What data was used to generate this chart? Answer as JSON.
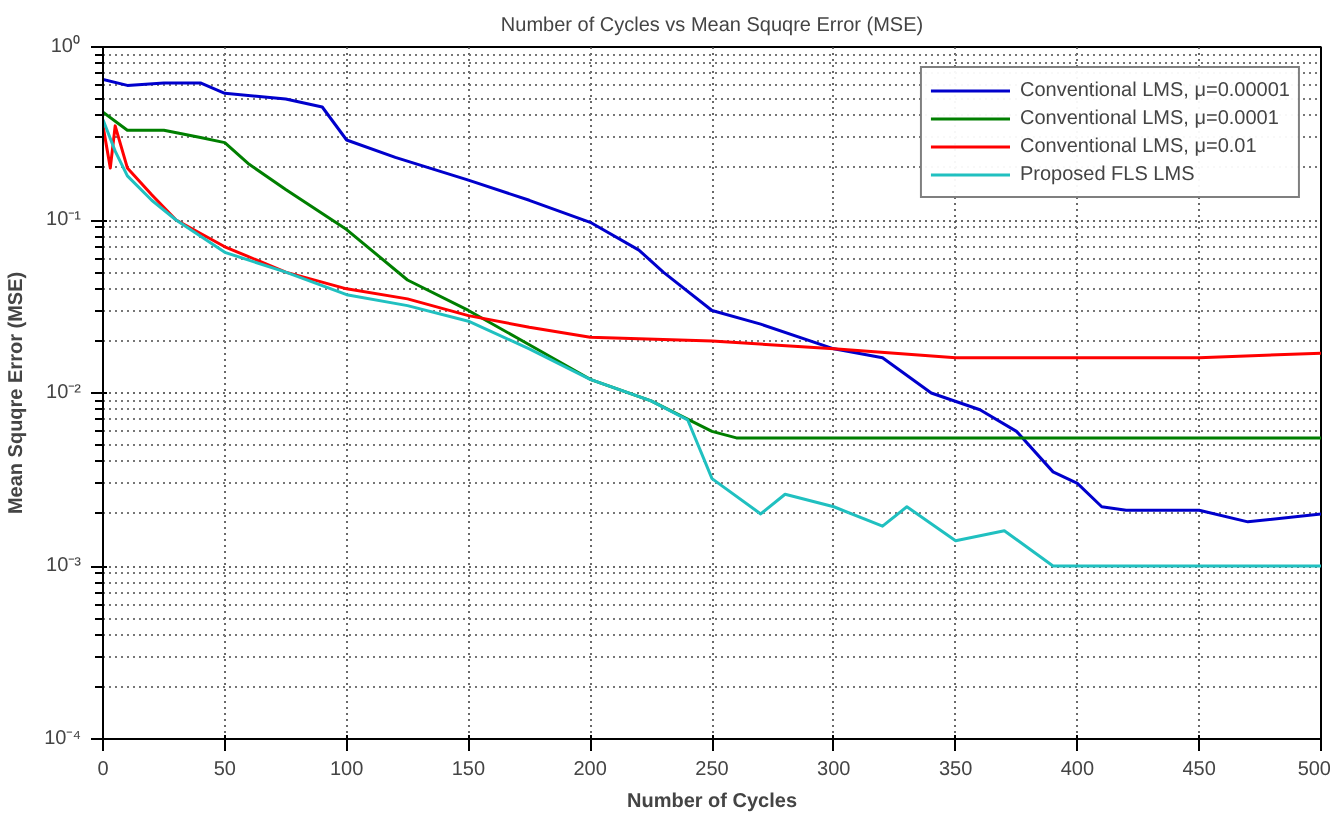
{
  "chart_data": {
    "type": "line",
    "title": "Number of Cycles vs Mean Squqre Error (MSE)",
    "xlabel": "Number of Cycles",
    "ylabel": "Mean Squqre Error (MSE)",
    "log": "y",
    "grid": true,
    "legend": "top right",
    "line_style": "solid",
    "xlim": [
      0,
      500
    ],
    "xticks": [
      0,
      50,
      100,
      150,
      200,
      250,
      300,
      350,
      400,
      450,
      500
    ],
    "ylim": [
      0.0001,
      1
    ],
    "yticks": [
      {
        "value": 0.0001,
        "label": "10⁻⁴"
      },
      {
        "value": 0.001,
        "label": "10⁻³"
      },
      {
        "value": 0.01,
        "label": "10⁻²"
      },
      {
        "value": 0.1,
        "label": "10⁻¹"
      },
      {
        "value": 1,
        "label": "10⁰"
      }
    ],
    "series": [
      {
        "name": "Conventional LMS, μ=0.00001",
        "color": "#0000cc",
        "x": [
          0,
          10,
          25,
          40,
          50,
          75,
          90,
          100,
          120,
          150,
          175,
          200,
          220,
          230,
          250,
          270,
          300,
          320,
          340,
          360,
          375,
          390,
          400,
          410,
          420,
          450,
          470,
          500
        ],
        "values": [
          0.65,
          0.6,
          0.62,
          0.62,
          0.54,
          0.5,
          0.45,
          0.29,
          0.23,
          0.17,
          0.13,
          0.097,
          0.067,
          0.05,
          0.03,
          0.025,
          0.018,
          0.016,
          0.01,
          0.008,
          0.006,
          0.0035,
          0.003,
          0.0022,
          0.0021,
          0.0021,
          0.0018,
          0.002
        ]
      },
      {
        "name": "Conventional LMS, μ=0.0001",
        "color": "#007f00",
        "x": [
          0,
          10,
          25,
          40,
          50,
          60,
          75,
          100,
          125,
          150,
          175,
          200,
          225,
          250,
          260,
          300,
          350,
          400,
          450,
          500
        ],
        "values": [
          0.42,
          0.33,
          0.33,
          0.3,
          0.28,
          0.21,
          0.15,
          0.088,
          0.045,
          0.03,
          0.019,
          0.012,
          0.009,
          0.006,
          0.0055,
          0.0055,
          0.0055,
          0.0055,
          0.0055,
          0.0055
        ]
      },
      {
        "name": "Conventional LMS, μ=0.01",
        "color": "#ff0000",
        "x": [
          0,
          3,
          5,
          10,
          20,
          30,
          50,
          75,
          100,
          125,
          150,
          175,
          200,
          250,
          300,
          350,
          400,
          450,
          500
        ],
        "values": [
          0.35,
          0.2,
          0.35,
          0.2,
          0.14,
          0.1,
          0.07,
          0.05,
          0.04,
          0.035,
          0.028,
          0.024,
          0.021,
          0.02,
          0.018,
          0.016,
          0.016,
          0.016,
          0.017
        ]
      },
      {
        "name": "Proposed FLS LMS",
        "color": "#20c0c0",
        "x": [
          0,
          5,
          10,
          20,
          30,
          50,
          75,
          100,
          125,
          150,
          175,
          200,
          225,
          240,
          250,
          270,
          280,
          300,
          320,
          330,
          350,
          370,
          390,
          400,
          450,
          500
        ],
        "values": [
          0.38,
          0.25,
          0.18,
          0.13,
          0.1,
          0.065,
          0.05,
          0.037,
          0.032,
          0.026,
          0.018,
          0.012,
          0.009,
          0.007,
          0.0032,
          0.002,
          0.0026,
          0.0022,
          0.0017,
          0.0022,
          0.0014,
          0.0016,
          0.001,
          0.001,
          0.001,
          0.001
        ]
      }
    ]
  }
}
